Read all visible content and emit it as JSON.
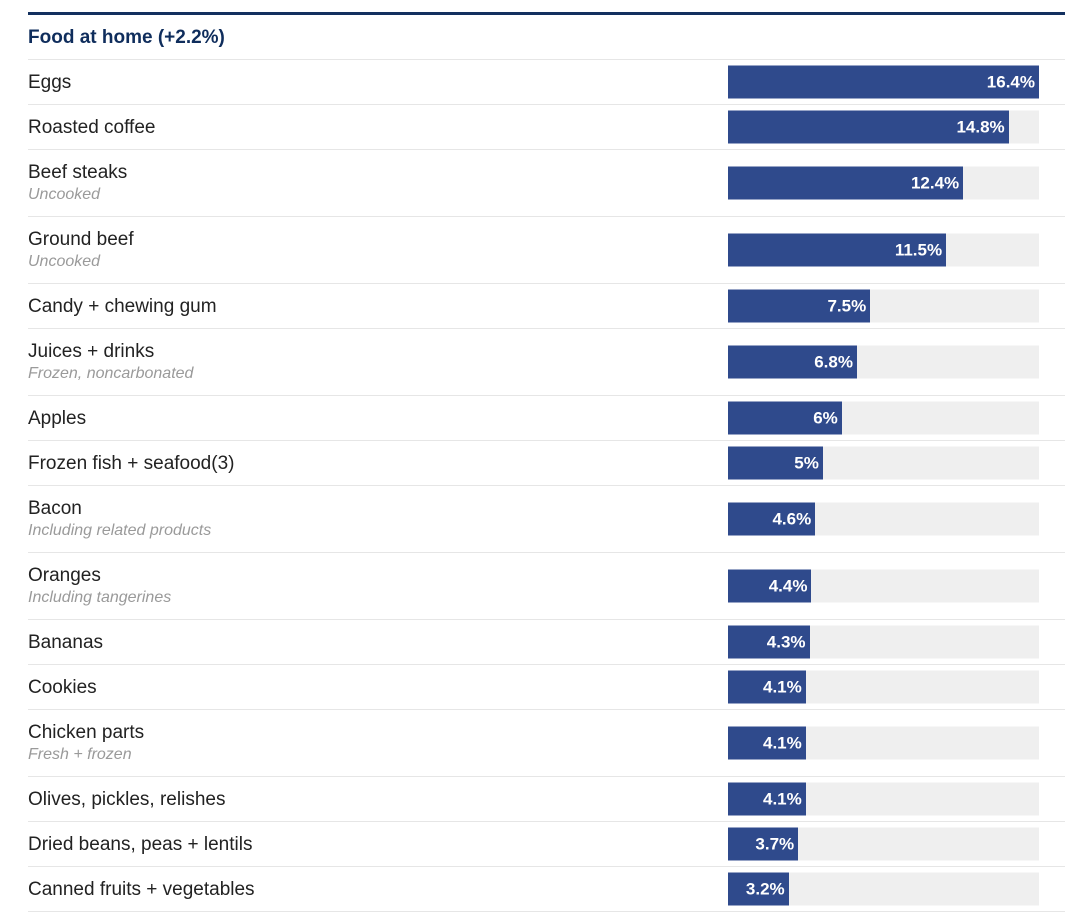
{
  "header": {
    "title": "Food at home (+2.2%)"
  },
  "colors": {
    "bar": "#2f4a8c",
    "track": "#efefef",
    "header_text": "#0f2d5c",
    "rule": "#13305f"
  },
  "chart_data": {
    "type": "bar",
    "orientation": "horizontal",
    "title": "Food at home (+2.2%)",
    "xlim": [
      0,
      16.4
    ],
    "categories": [
      "Eggs",
      "Roasted coffee",
      "Beef steaks",
      "Ground beef",
      "Candy + chewing gum",
      "Juices + drinks",
      "Apples",
      "Frozen fish + seafood(3)",
      "Bacon",
      "Oranges",
      "Bananas",
      "Cookies",
      "Chicken parts",
      "Olives, pickles, relishes",
      "Dried beans, peas + lentils",
      "Canned fruits + vegetables"
    ],
    "subtitles": [
      "",
      "",
      "Uncooked",
      "Uncooked",
      "",
      "Frozen, noncarbonated",
      "",
      "",
      "Including related products",
      "Including tangerines",
      "",
      "",
      "Fresh + frozen",
      "",
      "",
      ""
    ],
    "values": [
      16.4,
      14.8,
      12.4,
      11.5,
      7.5,
      6.8,
      6,
      5,
      4.6,
      4.4,
      4.3,
      4.1,
      4.1,
      4.1,
      3.7,
      3.2
    ],
    "value_labels": [
      "16.4%",
      "14.8%",
      "12.4%",
      "11.5%",
      "7.5%",
      "6.8%",
      "6%",
      "5%",
      "4.6%",
      "4.4%",
      "4.3%",
      "4.1%",
      "4.1%",
      "4.1%",
      "3.7%",
      "3.2%"
    ]
  }
}
